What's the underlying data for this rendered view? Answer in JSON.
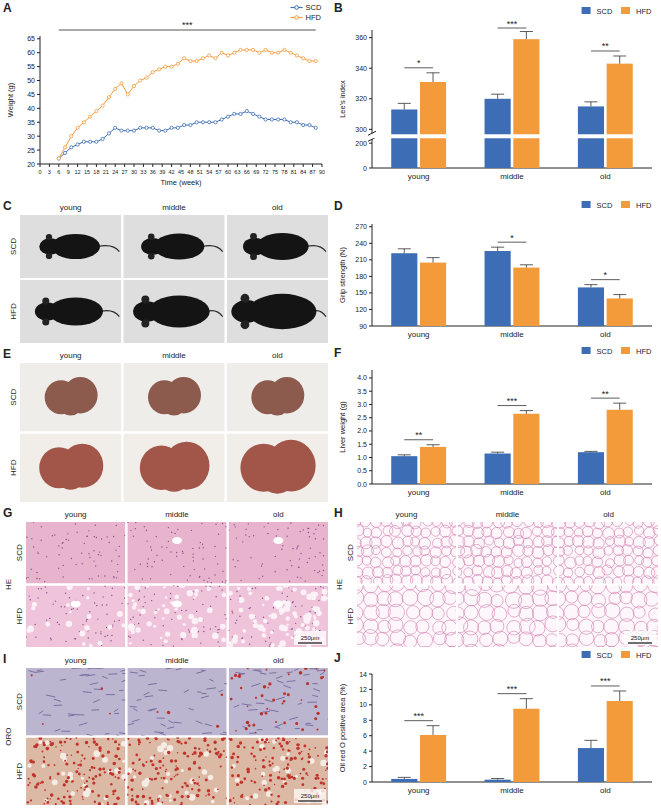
{
  "chart_data": [
    {
      "panel": "A",
      "type": "line",
      "x_label": "Time (week)",
      "y_label": "Weight (g)",
      "x": [
        6,
        8,
        10,
        12,
        14,
        16,
        18,
        20,
        22,
        24,
        26,
        28,
        30,
        32,
        34,
        36,
        38,
        40,
        42,
        44,
        46,
        48,
        50,
        52,
        54,
        56,
        58,
        60,
        62,
        64,
        66,
        68,
        70,
        72,
        74,
        76,
        78,
        80,
        82,
        84,
        86,
        88
      ],
      "series": [
        {
          "name": "SCD",
          "color": "#3d6db4",
          "marker": "circle",
          "values": [
            22,
            24,
            26,
            27,
            28,
            28,
            28,
            29,
            31,
            33,
            32,
            32,
            32,
            33,
            33,
            33,
            32,
            32,
            33,
            33,
            34,
            34,
            35,
            35,
            35,
            35,
            36,
            37,
            38,
            38,
            39,
            38,
            37,
            36,
            36,
            36,
            36,
            35,
            35,
            34,
            34,
            33
          ]
        },
        {
          "name": "HFD",
          "color": "#f39b3b",
          "marker": "circle",
          "values": [
            22,
            26,
            30,
            33,
            35,
            37,
            39,
            41,
            44,
            47,
            49,
            45,
            48,
            50,
            51,
            53,
            54,
            55,
            55,
            56,
            58,
            57,
            57,
            58,
            59,
            58,
            60,
            59,
            60,
            61,
            61,
            61,
            60,
            61,
            60,
            60,
            61,
            60,
            59,
            58,
            57,
            57
          ]
        }
      ],
      "xlim": [
        0,
        90
      ],
      "xticks": [
        0,
        3,
        6,
        9,
        12,
        15,
        18,
        21,
        24,
        27,
        30,
        33,
        36,
        39,
        42,
        45,
        48,
        51,
        54,
        57,
        60,
        63,
        66,
        69,
        72,
        75,
        78,
        81,
        84,
        87,
        90
      ],
      "ylim": [
        20,
        66
      ],
      "yticks": [
        20,
        25,
        30,
        35,
        40,
        45,
        50,
        55,
        60,
        65
      ],
      "significance": "***",
      "legend": "top-right"
    },
    {
      "panel": "B",
      "type": "bar",
      "y_label": "Lee's index",
      "categories": [
        "young",
        "middle",
        "old"
      ],
      "series": [
        {
          "name": "SCD",
          "color": "#3d6db4",
          "values": [
            313,
            320,
            315
          ],
          "errors": [
            4,
            3,
            3
          ]
        },
        {
          "name": "HFD",
          "color": "#f39b3b",
          "values": [
            331,
            359,
            343
          ],
          "errors": [
            6,
            5,
            5
          ]
        }
      ],
      "ylim": [
        0,
        365
      ],
      "yticks": [
        0,
        200,
        300,
        320,
        340,
        360
      ],
      "significance": [
        "*",
        "***",
        "**"
      ],
      "legend": "top-right"
    },
    {
      "panel": "D",
      "type": "bar",
      "y_label": "Grip strength (N)",
      "categories": [
        "young",
        "middle",
        "old"
      ],
      "series": [
        {
          "name": "SCD",
          "color": "#3d6db4",
          "values": [
            222,
            226,
            160
          ],
          "errors": [
            8,
            7,
            5
          ]
        },
        {
          "name": "HFD",
          "color": "#f39b3b",
          "values": [
            205,
            196,
            140
          ],
          "errors": [
            9,
            5,
            7
          ]
        }
      ],
      "ylim": [
        90,
        275
      ],
      "yticks": [
        90,
        120,
        150,
        180,
        210,
        240,
        270
      ],
      "significance": [
        null,
        "*",
        "*"
      ],
      "legend": "top-right"
    },
    {
      "panel": "F",
      "type": "bar",
      "y_label": "Liver weight (g)",
      "categories": [
        "young",
        "middle",
        "old"
      ],
      "series": [
        {
          "name": "SCD",
          "color": "#3d6db4",
          "values": [
            1.05,
            1.15,
            1.2
          ],
          "errors": [
            0.05,
            0.05,
            0.03
          ]
        },
        {
          "name": "HFD",
          "color": "#f39b3b",
          "values": [
            1.4,
            2.65,
            2.8
          ],
          "errors": [
            0.08,
            0.12,
            0.25
          ]
        }
      ],
      "ylim": [
        0,
        4.3
      ],
      "yticks": [
        {
          "value": 0,
          "label": "0.0"
        },
        0.5,
        {
          "value": 1,
          "label": "1.0"
        },
        1.5,
        {
          "value": 2,
          "label": "2.0"
        },
        2.5,
        {
          "value": 3,
          "label": "3.0"
        },
        3.5,
        {
          "value": 4,
          "label": "4.0"
        }
      ],
      "significance": [
        "**",
        "***",
        "**"
      ],
      "legend": "top-right"
    },
    {
      "panel": "J",
      "type": "bar",
      "y_label": "Oil red O positive area (%)",
      "categories": [
        "young",
        "middle",
        "old"
      ],
      "series": [
        {
          "name": "SCD",
          "color": "#3d6db4",
          "values": [
            0.4,
            0.3,
            4.4
          ],
          "errors": [
            0.2,
            0.15,
            1.0
          ]
        },
        {
          "name": "HFD",
          "color": "#f39b3b",
          "values": [
            6.1,
            9.5,
            10.5
          ],
          "errors": [
            1.2,
            1.3,
            1.3
          ]
        }
      ],
      "ylim": [
        0,
        14
      ],
      "yticks": [
        0,
        2,
        4,
        6,
        8,
        10,
        12,
        14
      ],
      "significance": [
        "***",
        "***",
        "***"
      ],
      "legend": "top-right"
    }
  ],
  "image_panels": [
    {
      "panel": "C",
      "columns": [
        "young",
        "middle",
        "old"
      ],
      "rows": [
        "SCD",
        "HFD"
      ]
    },
    {
      "panel": "E",
      "columns": [
        "young",
        "middle",
        "old"
      ],
      "rows": [
        "SCD",
        "HFD"
      ]
    },
    {
      "panel": "G",
      "stain": "HE",
      "columns": [
        "young",
        "middle",
        "old"
      ],
      "rows": [
        "SCD",
        "HFD"
      ],
      "scale_bar": "250μm"
    },
    {
      "panel": "H",
      "stain": "HE",
      "columns": [
        "young",
        "middle",
        "old"
      ],
      "rows": [
        "SCD",
        "HFD"
      ],
      "scale_bar": "250μm"
    },
    {
      "panel": "I",
      "stain": "ORO",
      "columns": [
        "young",
        "middle",
        "old"
      ],
      "rows": [
        "SCD",
        "HFD"
      ],
      "scale_bar": "250μm"
    }
  ]
}
